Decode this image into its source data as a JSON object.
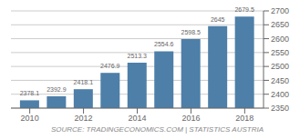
{
  "chart_data": {
    "type": "bar",
    "x": [
      2010,
      2011,
      2012,
      2013,
      2014,
      2015,
      2016,
      2017,
      2018
    ],
    "values": [
      2378.1,
      2392.9,
      2418.1,
      2476.9,
      2513.3,
      2554.6,
      2598.5,
      2645,
      2679.5
    ],
    "color": "#4d7fa8",
    "xlim": [
      2009.3,
      2018.7
    ],
    "xticks": [
      2010,
      2012,
      2014,
      2016,
      2018
    ],
    "ylim": [
      2350,
      2700
    ],
    "yticks": [
      2350,
      2400,
      2450,
      2500,
      2550,
      2600,
      2650,
      2700
    ],
    "grid": true,
    "data_labels": true,
    "annotations": [
      "SOURCE: TRADINGECONOMICS.COM | STATISTICS AUSTRIA"
    ]
  }
}
